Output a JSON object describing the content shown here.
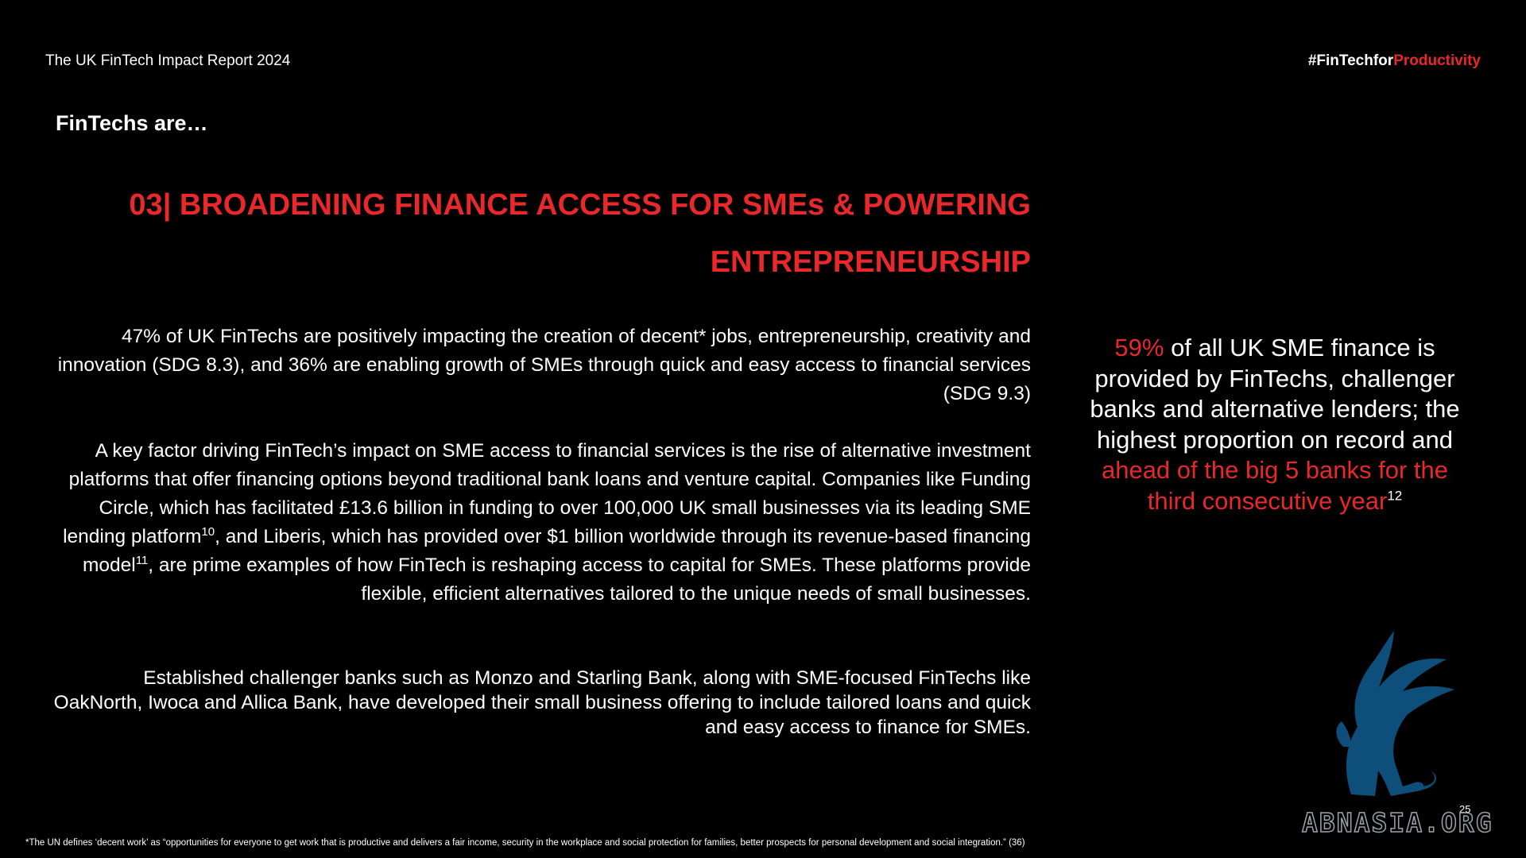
{
  "header": {
    "title": "The UK FinTech Impact Report 2024",
    "tag_prefix": "#FinTechfor",
    "tag_highlight": "Productivity"
  },
  "section_label": "FinTechs are…",
  "heading": {
    "line1": "03| BROADENING FINANCE ACCESS FOR SMEs & POWERING",
    "line2": "ENTREPRENEURSHIP"
  },
  "paragraphs": {
    "p1": "47% of UK FinTechs are positively impacting the creation of decent* jobs, entrepreneurship, creativity and innovation (SDG 8.3), and 36% are enabling growth of SMEs through quick and easy access to financial services (SDG 9.3)",
    "p2_a": "A key factor driving FinTech’s impact on SME access to financial services is the rise of alternative investment platforms that offer financing options beyond traditional bank loans and venture capital. Companies like Funding Circle, which has facilitated £13.6 billion in funding to over 100,000 UK small businesses via its leading SME lending platform",
    "p2_sup1": "10",
    "p2_b": ", and Liberis, which has provided over $1 billion worldwide through its revenue-based financing model",
    "p2_sup2": "11",
    "p2_c": ", are prime examples of how FinTech is reshaping access to capital for SMEs. These platforms provide flexible, efficient alternatives tailored to the unique needs of small businesses.",
    "p3": "Established challenger banks such as Monzo and Starling Bank, along with SME-focused FinTechs like OakNorth, Iwoca and Allica Bank, have developed their small business offering to include tailored loans and quick and easy access to finance for SMEs."
  },
  "callout": {
    "stat": "59%",
    "text": " of all UK SME finance is provided by FinTechs, challenger banks and alternative lenders; the highest proportion on record and ",
    "highlight": "ahead of the big 5 banks for the third consecutive year",
    "sup": "12"
  },
  "footnote": "*The UN defines ‘decent work’ as “opportunities for everyone to get work that is productive and delivers a fair income, security in the workplace and social protection for families, better prospects for personal development and social integration.” (36)",
  "page_number": "25",
  "watermark": "ABNASIA.ORG",
  "colors": {
    "accent": "#e8282b",
    "logo": "#0d4f7a",
    "background": "#000000"
  }
}
